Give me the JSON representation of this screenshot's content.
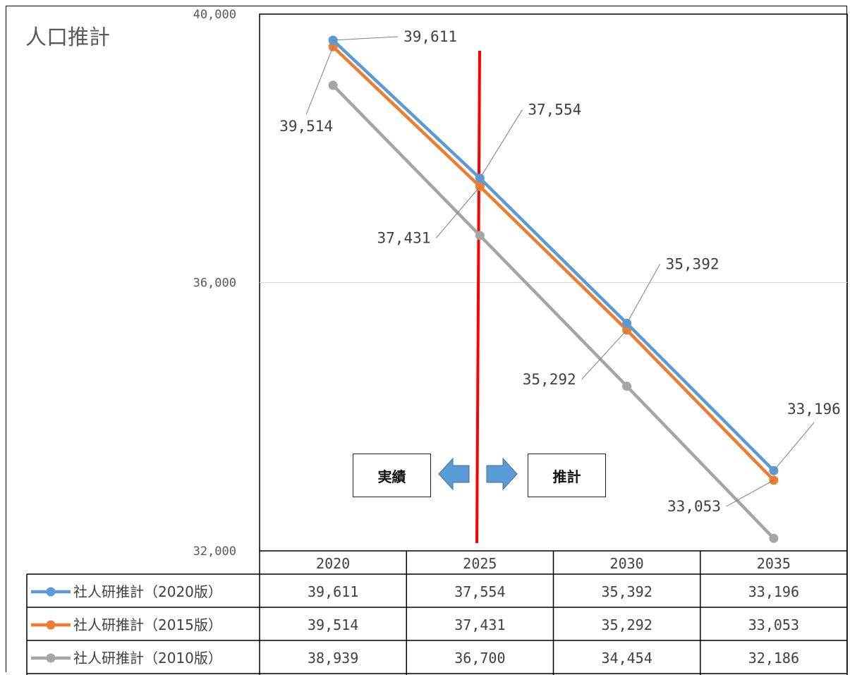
{
  "chart_data": {
    "type": "line",
    "title": "人口推計",
    "categories": [
      "2020",
      "2025",
      "2030",
      "2035"
    ],
    "ylim": [
      32000,
      40000
    ],
    "y_ticks": [
      "40,000",
      "36,000",
      "32,000"
    ],
    "grid": true,
    "series": [
      {
        "name": "社人研推計（2020版）",
        "color": "#5B9BD5",
        "values": [
          39611,
          37554,
          35392,
          33196
        ],
        "labels": [
          "39,611",
          "37,554",
          "35,392",
          "33,196"
        ]
      },
      {
        "name": "社人研推計（2015版）",
        "color": "#ED7D31",
        "values": [
          39514,
          37431,
          35292,
          33053
        ],
        "labels": [
          "39,514",
          "37,431",
          "35,292",
          "33,053"
        ]
      },
      {
        "name": "社人研推計（2010版）",
        "color": "#A5A5A5",
        "values": [
          38939,
          36700,
          34454,
          32186
        ],
        "labels": [
          "38,939",
          "36,700",
          "34,454",
          "32,186"
        ]
      }
    ],
    "divider_color": "#FF0000",
    "annotations": {
      "left": "実績",
      "right": "推計"
    },
    "arrow_color": "#5B9BD5"
  }
}
